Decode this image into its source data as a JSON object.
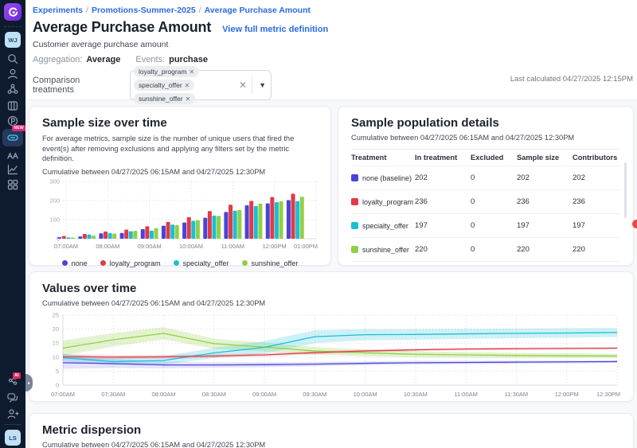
{
  "sidebar": {
    "workspace_avatar": "WJ",
    "user_avatar": "LS",
    "new_badge": "NEW",
    "ai_badge": "AI",
    "icons": [
      "statsig-logo-icon",
      "workspace-avatar",
      "search-icon",
      "user-icon",
      "feature-gates-icon",
      "columns-icon",
      "pulse-icon",
      "console-tile-icon",
      "ab-experiment-icon",
      "metrics-chart-icon",
      "dashboard-grid-icon",
      "ai-assistant-icon",
      "help-chat-icon",
      "invite-user-icon",
      "user-avatar",
      "collapse-handle-icon"
    ]
  },
  "header": {
    "breadcrumb": [
      "Experiments",
      "Promotions-Summer-2025",
      "Average Purchase Amount"
    ],
    "separator": "/",
    "title": "Average Purchase Amount",
    "metric_link": "View full metric definition",
    "subtitle": "Customer average purchase amount",
    "aggregation_label": "Aggregation:",
    "aggregation_value": "Average",
    "events_label": "Events:",
    "events_value": "purchase",
    "comparison_label": "Comparison treatments",
    "comparison_chips": [
      "loyalty_program",
      "specialty_offer",
      "sunshine_offer"
    ],
    "chip_remove_glyph": "✕",
    "clear_glyph": "✕",
    "chevron_glyph": "▼",
    "last_calculated": "Last calculated 04/27/2025 12:15PM"
  },
  "cards": {
    "sample_size": {
      "title": "Sample size over time",
      "description": "For average metrics, sample size is the number of unique users that fired the event(s) after removing exclusions and applying any filters set by the metric definition.",
      "range": "Cumulative between 04/27/2025 06:15AM and 04/27/2025 12:30PM"
    },
    "population": {
      "title": "Sample population details",
      "range": "Cumulative between 04/27/2025 06:15AM and 04/27/2025 12:30PM",
      "table": {
        "headers": [
          "Treatment",
          "In treatment",
          "Excluded",
          "Sample size",
          "Contributors"
        ],
        "rows": [
          {
            "color": "#4a43d9",
            "name": "none  (baseline)",
            "in_treatment": "202",
            "excluded": "0",
            "sample_size": "202",
            "contributors": "202"
          },
          {
            "color": "#e03b47",
            "name": "loyalty_program",
            "in_treatment": "236",
            "excluded": "0",
            "sample_size": "236",
            "contributors": "236"
          },
          {
            "color": "#1abfd4",
            "name": "specialty_offer",
            "in_treatment": "197",
            "excluded": "0",
            "sample_size": "197",
            "contributors": "197"
          },
          {
            "color": "#8fd144",
            "name": "sunshine_offer",
            "in_treatment": "220",
            "excluded": "0",
            "sample_size": "220",
            "contributors": "220"
          }
        ]
      }
    },
    "values": {
      "title": "Values over time",
      "range": "Cumulative between 04/27/2025 06:15AM and 04/27/2025 12:30PM"
    },
    "dispersion": {
      "title": "Metric dispersion",
      "range": "Cumulative between 04/27/2025 06:15AM and 04/27/2025 12:30PM"
    }
  },
  "colors": {
    "accent_blue": "#2b6be4",
    "sidebar_bg": "#0e1a2e",
    "new_badge_pink": "#d62a78",
    "series_none": "#4a43d9",
    "series_loyalty_program": "#e03b47",
    "series_specialty_offer": "#1abfd4",
    "series_sunshine_offer": "#8fd144"
  },
  "chart_data": [
    {
      "type": "bar",
      "title": "Sample size over time",
      "x_tick_labels": [
        "07:00AM",
        "08:00AM",
        "09:00AM",
        "10:00AM",
        "11:00AM",
        "12:00PM",
        "01:00PM"
      ],
      "group_times": [
        "07:00AM",
        "07:30AM",
        "08:00AM",
        "08:30AM",
        "09:00AM",
        "09:30AM",
        "10:00AM",
        "10:30AM",
        "11:00AM",
        "11:30AM",
        "12:00PM",
        "12:30PM"
      ],
      "ylim": [
        0,
        300
      ],
      "yticks": [
        0,
        100,
        200,
        300
      ],
      "legend_position": "bottom",
      "grid": true,
      "series": [
        {
          "name": "none",
          "color": "#4a43d9",
          "values": [
            8,
            12,
            28,
            30,
            50,
            68,
            85,
            110,
            140,
            175,
            185,
            202
          ]
        },
        {
          "name": "loyalty_program",
          "color": "#e03b47",
          "values": [
            14,
            25,
            38,
            48,
            65,
            88,
            113,
            145,
            178,
            198,
            218,
            236
          ]
        },
        {
          "name": "specialty_offer",
          "color": "#1abfd4",
          "values": [
            7,
            22,
            29,
            39,
            42,
            74,
            94,
            121,
            147,
            171,
            191,
            197
          ]
        },
        {
          "name": "sunshine_offer",
          "color": "#8fd144",
          "values": [
            6,
            16,
            27,
            41,
            55,
            72,
            97,
            120,
            150,
            184,
            196,
            220
          ]
        }
      ]
    },
    {
      "type": "line",
      "title": "Values over time",
      "x": [
        "07:00AM",
        "07:30AM",
        "08:00AM",
        "08:30AM",
        "09:00AM",
        "09:30AM",
        "10:00AM",
        "10:30AM",
        "11:00AM",
        "11:30AM",
        "12:00PM",
        "12:30PM"
      ],
      "ylim": [
        0,
        25
      ],
      "yticks": [
        0,
        5,
        10,
        15,
        20,
        25
      ],
      "grid": true,
      "bands": true,
      "series": [
        {
          "name": "sunshine_offer",
          "color": "#8fd144",
          "band_opacity": 0.25,
          "values": [
            13.2,
            16.2,
            18.5,
            14.8,
            13.6,
            12.2,
            11.5,
            11.0,
            10.8,
            10.6,
            10.5,
            10.4
          ],
          "band_half": [
            2.7,
            2.4,
            2.2,
            1.8,
            1.6,
            1.4,
            1.2,
            1.1,
            1.0,
            0.9,
            0.85,
            0.8
          ]
        },
        {
          "name": "specialty_offer",
          "color": "#1abfd4",
          "band_opacity": 0.22,
          "values": [
            9.8,
            8.4,
            8.8,
            11.5,
            13.5,
            17.3,
            18.0,
            18.1,
            18.3,
            18.5,
            18.6,
            18.8
          ],
          "band_half": [
            1.4,
            1.3,
            1.5,
            1.8,
            2.2,
            2.3,
            2.0,
            1.9,
            1.8,
            1.7,
            1.7,
            1.6
          ]
        },
        {
          "name": "loyalty_program",
          "color": "#e03b47",
          "band_opacity": 0.16,
          "values": [
            10.2,
            10.0,
            10.1,
            10.4,
            10.8,
            11.6,
            12.2,
            12.6,
            12.9,
            13.0,
            13.1,
            13.2
          ],
          "band_half": [
            0.9,
            0.8,
            0.7,
            0.7,
            0.6,
            0.6,
            0.5,
            0.5,
            0.45,
            0.45,
            0.4,
            0.4
          ]
        },
        {
          "name": "none",
          "color": "#4a43d9",
          "band_opacity": 0.14,
          "values": [
            8.0,
            7.7,
            7.2,
            7.2,
            7.3,
            7.5,
            7.8,
            8.0,
            8.1,
            8.2,
            8.3,
            8.4
          ],
          "band_half": [
            2.2,
            1.6,
            1.2,
            1.0,
            0.9,
            0.8,
            0.7,
            0.7,
            0.6,
            0.6,
            0.55,
            0.5
          ]
        }
      ]
    }
  ]
}
